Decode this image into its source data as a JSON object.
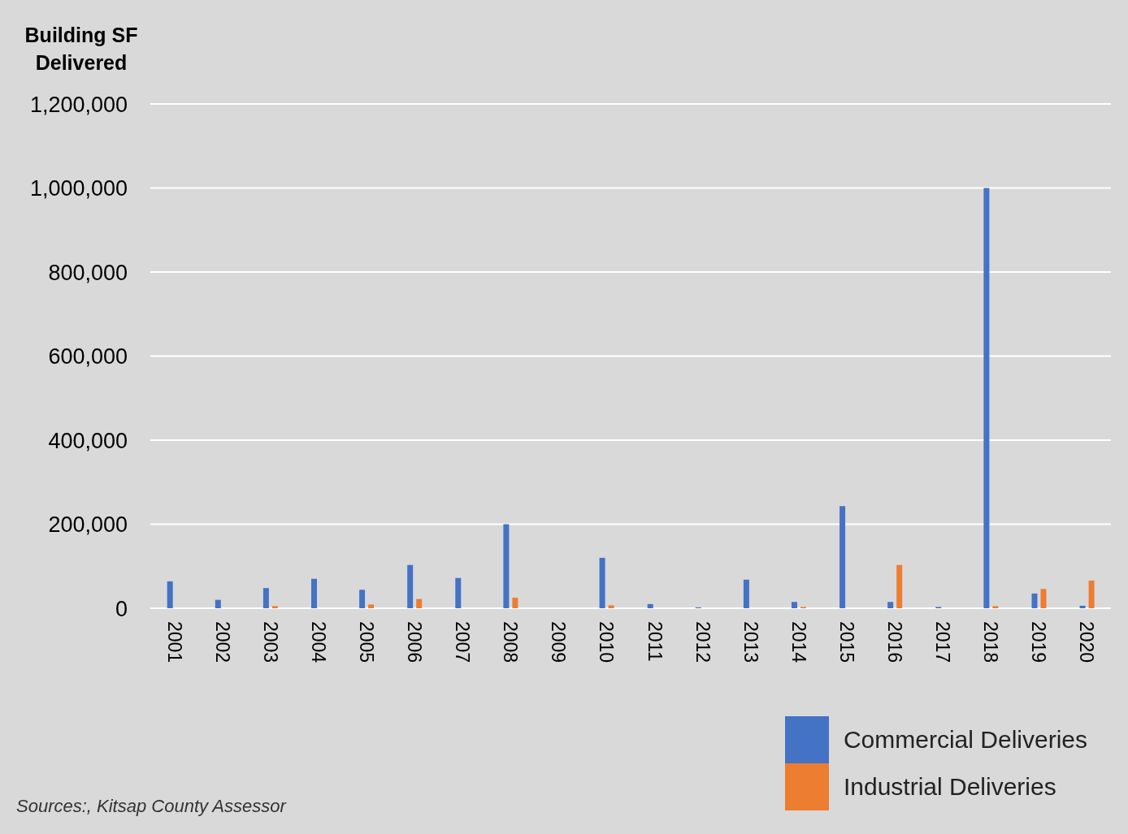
{
  "chart_data": {
    "type": "bar",
    "ylabel": "Building SF Delivered",
    "categories": [
      "2001",
      "2002",
      "2003",
      "2004",
      "2005",
      "2006",
      "2007",
      "2008",
      "2009",
      "2010",
      "2011",
      "2012",
      "2013",
      "2014",
      "2015",
      "2016",
      "2017",
      "2018",
      "2019",
      "2020"
    ],
    "series": [
      {
        "name": "Commercial Deliveries",
        "color": "#4472c4",
        "values": [
          64000,
          20000,
          48000,
          70000,
          44000,
          103000,
          72000,
          200000,
          0,
          120000,
          10000,
          2000,
          68000,
          15000,
          243000,
          15000,
          3000,
          1000000,
          35000,
          6000
        ]
      },
      {
        "name": "Industrial Deliveries",
        "color": "#ed7d31",
        "values": [
          0,
          0,
          5000,
          0,
          9000,
          22000,
          0,
          25000,
          0,
          7000,
          0,
          0,
          0,
          3000,
          0,
          103000,
          0,
          5000,
          46000,
          66000
        ]
      }
    ],
    "ylim": [
      0,
      1200000
    ],
    "yticks": [
      {
        "value": 0,
        "label": "0"
      },
      {
        "value": 200000,
        "label": "200,000"
      },
      {
        "value": 400000,
        "label": "400,000"
      },
      {
        "value": 600000,
        "label": "600,000"
      },
      {
        "value": 800000,
        "label": "800,000"
      },
      {
        "value": 1000000,
        "label": "1,000,000"
      },
      {
        "value": 1200000,
        "label": "1,200,000"
      }
    ],
    "grid": "y",
    "legend": "bottom right",
    "annotations": [
      "Sources:, Kitsap County Assessor"
    ]
  }
}
